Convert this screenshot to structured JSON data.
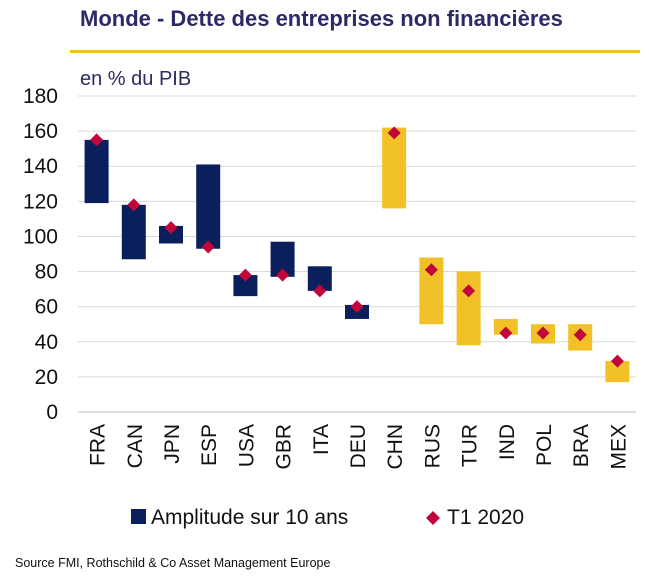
{
  "title": "Monde - Dette des entreprises non financières",
  "unit_label": "en % du PIB",
  "source": "Source FMI, Rothschild  & Co Asset Management Europe",
  "colors": {
    "title": "#2b2a66",
    "rule": "#f2c027",
    "advanced": "#0b1f5c",
    "emerging": "#f2c027",
    "marker": "#c0063a",
    "grid": "#d9d9d9"
  },
  "chart_data": {
    "type": "floating-bar",
    "categories": [
      "FRA",
      "CAN",
      "JPN",
      "ESP",
      "USA",
      "GBR",
      "ITA",
      "DEU",
      "CHN",
      "RUS",
      "TUR",
      "IND",
      "POL",
      "BRA",
      "MEX"
    ],
    "ranges": [
      [
        119,
        155
      ],
      [
        87,
        118
      ],
      [
        96,
        106
      ],
      [
        93,
        141
      ],
      [
        66,
        78
      ],
      [
        77,
        97
      ],
      [
        69,
        83
      ],
      [
        53,
        61
      ],
      [
        116,
        162
      ],
      [
        50,
        88
      ],
      [
        38,
        80
      ],
      [
        44,
        53
      ],
      [
        39,
        50
      ],
      [
        35,
        50
      ],
      [
        17,
        29
      ]
    ],
    "t1_2020": [
      155,
      118,
      105,
      94,
      78,
      78,
      69,
      60,
      159,
      81,
      69,
      45,
      45,
      44,
      29
    ],
    "bar_color_group": [
      "advanced",
      "advanced",
      "advanced",
      "advanced",
      "advanced",
      "advanced",
      "advanced",
      "advanced",
      "emerging",
      "emerging",
      "emerging",
      "emerging",
      "emerging",
      "emerging",
      "emerging"
    ],
    "ylim": [
      0,
      180
    ],
    "yticks": [
      0,
      20,
      40,
      60,
      80,
      100,
      120,
      140,
      160,
      180
    ],
    "grid": true,
    "legend": [
      {
        "label": "Amplitude sur 10 ans",
        "marker": "square"
      },
      {
        "label": "T1 2020",
        "marker": "diamond"
      }
    ],
    "legend_placement": "bottom"
  }
}
